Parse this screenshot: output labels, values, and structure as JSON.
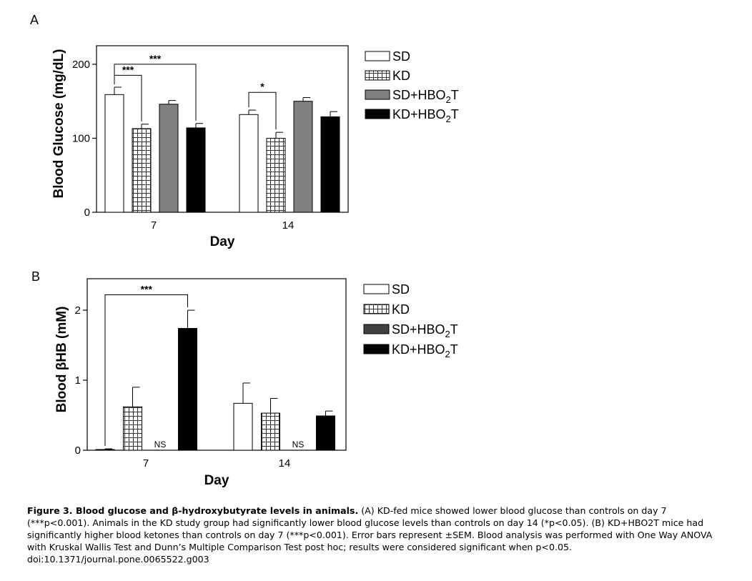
{
  "chart_data": [
    {
      "panel": "A",
      "type": "bar",
      "xlabel": "Day",
      "ylabel": "Blood Glucose (mg/dL)",
      "ylim": [
        0,
        225
      ],
      "yticks": [
        0,
        100,
        200
      ],
      "categories": [
        "7",
        "14"
      ],
      "series": [
        {
          "name": "SD",
          "fill": "white",
          "values": [
            159,
            132
          ],
          "errors": [
            10,
            6
          ]
        },
        {
          "name": "KD",
          "fill": "grid",
          "values": [
            113,
            100
          ],
          "errors": [
            6,
            8
          ]
        },
        {
          "name": "SD+HBO2T",
          "fill": "#808080",
          "values": [
            146,
            150
          ],
          "errors": [
            5,
            5
          ]
        },
        {
          "name": "KD+HBO2T",
          "fill": "#000000",
          "values": [
            114,
            129
          ],
          "errors": [
            6,
            7
          ]
        }
      ],
      "legend": [
        "SD",
        "KD",
        "SD+HBO",
        "KD+HBO"
      ],
      "legend_suffix": "T",
      "legend_sub": "2",
      "annotations": [
        {
          "label": "***",
          "category": 0,
          "from_series": 0,
          "to_series": 1,
          "level": 185
        },
        {
          "label": "***",
          "category": 0,
          "from_series": 0,
          "to_series": 3,
          "level": 200
        },
        {
          "label": "*",
          "category": 1,
          "from_series": 0,
          "to_series": 1,
          "level": 162
        }
      ],
      "ns_labels": []
    },
    {
      "panel": "B",
      "type": "bar",
      "xlabel": "Day",
      "ylabel": "Blood βHB (mM)",
      "ylim": [
        0,
        2.45
      ],
      "yticks": [
        0,
        1,
        2
      ],
      "categories": [
        "7",
        "14"
      ],
      "series": [
        {
          "name": "SD",
          "fill": "white",
          "values": [
            0.01,
            0.67
          ],
          "errors": [
            0.01,
            0.29
          ]
        },
        {
          "name": "KD",
          "fill": "grid",
          "values": [
            0.62,
            0.53
          ],
          "errors": [
            0.28,
            0.21
          ]
        },
        {
          "name": "SD+HBO2T",
          "fill": "#404040",
          "values": [
            0,
            0
          ],
          "errors": [
            0,
            0
          ]
        },
        {
          "name": "KD+HBO2T",
          "fill": "#000000",
          "values": [
            1.74,
            0.49
          ],
          "errors": [
            0.26,
            0.07
          ]
        }
      ],
      "legend": [
        "SD",
        "KD",
        "SD+HBO",
        "KD+HBO"
      ],
      "legend_suffix": "T",
      "legend_sub": "2",
      "annotations": [
        {
          "label": "***",
          "category": 0,
          "from_series": 0,
          "to_series": 3,
          "level": 2.22
        }
      ],
      "ns_labels": [
        {
          "label": "NS",
          "category": 0,
          "series": 2
        },
        {
          "label": "NS",
          "category": 1,
          "series": 2
        }
      ]
    }
  ],
  "caption": {
    "bold": "Figure 3. Blood glucose and β-hydroxybutyrate levels in animals.",
    "text": " (A) KD-fed mice showed lower blood glucose than controls on day 7 (***p<0.001).  Animals in the KD study group had significantly lower blood glucose levels than controls on day 14 (*p<0.05).  (B) KD+HBO2T mice had significantly higher blood ketones than controls on day 7 (***p<0.001).  Error bars represent ±SEM.  Blood analysis was performed with One Way ANOVA with Kruskal Wallis Test and Dunn’s Multiple Comparison Test post hoc; results were considered significant when p<0.05.",
    "doi": "doi:10.1371/journal.pone.0065522.g003"
  }
}
